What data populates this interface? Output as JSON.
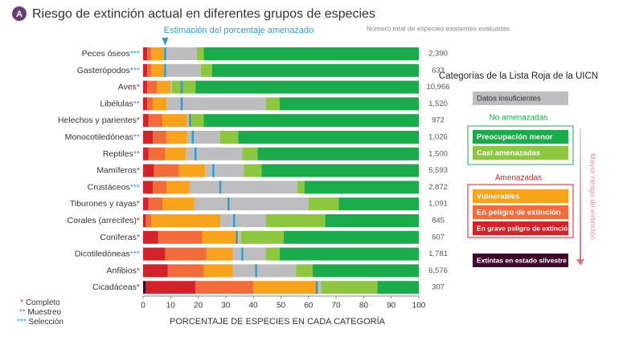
{
  "chart_data": {
    "type": "stacked-bar-horizontal",
    "badge": "A",
    "title": "Riesgo de extinción actual en diferentes grupos de especies",
    "estimate_label": "Estimación del porcentaje amenazado",
    "count_header": "Número total de especies existentes evaluadas",
    "x_label": "PORCENTAJE DE ESPECIES EN CADA CATEGORÍA",
    "legend_title": "Categorías de la Lista Roja de la UICN",
    "legend_groups": [
      "No amenazadas",
      "Amenazadas"
    ],
    "risk_arrow_label": "Mayor riesgo de extinción",
    "categories": [
      "Peces óseos",
      "Gasterópodos",
      "Aves",
      "Libélulas",
      "Helechos y parientes",
      "Monocotiledóneas",
      "Reptiles",
      "Mamíferos",
      "Crustáceos",
      "Tiburones y rayas",
      "Corales (arrecifes)",
      "Coníferas",
      "Dicotiledóneas",
      "Anfibios",
      "Cicadáceas"
    ],
    "stars": [
      "***",
      "***",
      "*",
      "**",
      "*",
      "**",
      "**",
      "*",
      "***",
      "*",
      "*",
      "*",
      "***",
      "*",
      "*"
    ],
    "footnotes": [
      {
        "stars": "*",
        "text": "Completo",
        "color": "#d2232a"
      },
      {
        "stars": "**",
        "text": "Muestreo",
        "color": "#7a6fd8"
      },
      {
        "stars": "***",
        "text": "Selección",
        "color": "#2a9fd6"
      }
    ],
    "counts": [
      {
        "value": 2390,
        "label": "2,390"
      },
      633,
      {
        "value": 10966,
        "label": "10,966"
      },
      {
        "value": 1520,
        "label": "1,520"
      },
      972,
      {
        "value": 1026,
        "label": "1,026"
      },
      {
        "value": 1500,
        "label": "1,500"
      },
      {
        "value": 5593,
        "label": "5,593"
      },
      {
        "value": 2872,
        "label": "2,872"
      },
      {
        "value": 1091,
        "label": "1,091"
      },
      845,
      607,
      {
        "value": 1781,
        "label": "1,781"
      },
      {
        "value": 6576,
        "label": "6,576"
      },
      307
    ],
    "series": [
      {
        "name": "Extintas en estado silvestre",
        "color": "#3d0a2c",
        "values": [
          0,
          0,
          0,
          0,
          0,
          0,
          0,
          0,
          0,
          0,
          0,
          0,
          0,
          0,
          1
        ]
      },
      {
        "name": "En grave peligro de extinción",
        "color": "#d2232a",
        "values": [
          1.5,
          1.5,
          1.5,
          1.5,
          2,
          3.5,
          2,
          4,
          3.5,
          2,
          1,
          5.5,
          8,
          9,
          18
        ]
      },
      {
        "name": "En peligro de extinción",
        "color": "#f26b3a",
        "values": [
          1.5,
          1.5,
          3.5,
          2,
          5,
          5,
          6,
          9,
          5,
          5,
          2,
          16,
          15,
          13,
          21
        ]
      },
      {
        "name": "Vulnerables",
        "color": "#f9a21b",
        "values": [
          5,
          5,
          5,
          5,
          9,
          7.5,
          7.5,
          9.5,
          8.5,
          11.5,
          25,
          13,
          9.5,
          10.5,
          23
        ]
      },
      {
        "name": "Datos insuficientes",
        "color": "#bdbdbf",
        "values": [
          11.5,
          13,
          0.5,
          36,
          1,
          12,
          20.5,
          14,
          39,
          41.5,
          16.5,
          1,
          12,
          23,
          1.5
        ]
      },
      {
        "name": "Casi amenazadas",
        "color": "#8dc63f",
        "values": [
          2.5,
          4,
          8.5,
          5,
          5,
          6.5,
          5.5,
          6.5,
          2.5,
          11,
          21.5,
          15.5,
          5,
          6,
          20.5
        ]
      },
      {
        "name": "Preocupación menor",
        "color": "#1aab4b",
        "values": [
          78,
          75,
          81,
          50.5,
          78,
          65.5,
          58.5,
          57,
          41.5,
          29,
          34,
          49,
          50.5,
          38.5,
          15
        ]
      }
    ],
    "estimate": {
      "color": "#2a9fd6",
      "values": [
        8,
        8,
        14,
        14,
        17,
        18,
        19,
        25.5,
        28,
        31,
        33,
        34,
        36,
        41,
        63
      ]
    },
    "xlim": [
      0,
      100
    ],
    "xticks": [
      0,
      10,
      20,
      30,
      40,
      50,
      60,
      70,
      80,
      90,
      100
    ]
  }
}
